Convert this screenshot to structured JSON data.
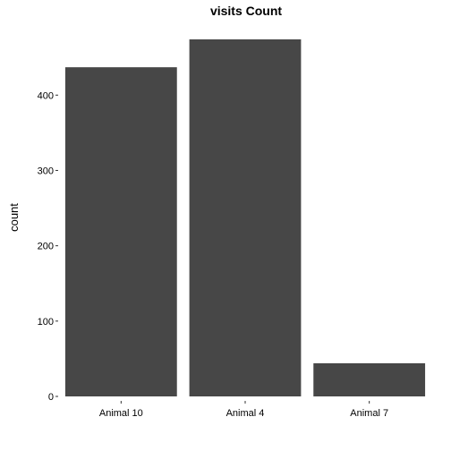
{
  "chart_data": {
    "type": "bar",
    "title": "visits Count",
    "xlabel": "",
    "ylabel": "count",
    "categories": [
      "Animal 10",
      "Animal 4",
      "Animal 7"
    ],
    "values": [
      437,
      474,
      44
    ],
    "ylim": [
      0,
      474
    ],
    "yticks": [
      0,
      100,
      200,
      300,
      400
    ],
    "ytick_labels": [
      "0",
      "100",
      "200",
      "300",
      "400"
    ],
    "grid": false,
    "legend": "none",
    "colors": {
      "bar": "#474747",
      "background": "#ffffff"
    }
  }
}
